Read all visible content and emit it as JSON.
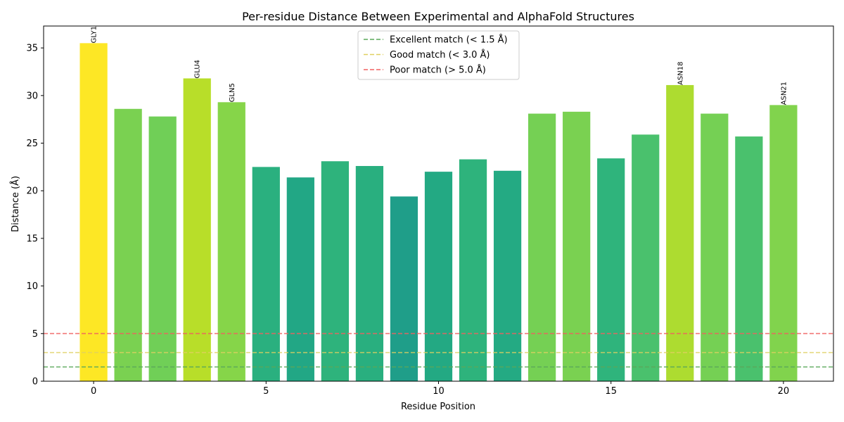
{
  "chart_data": {
    "type": "bar",
    "title": "Per-residue Distance Between Experimental and AlphaFold Structures",
    "xlabel": "Residue Position",
    "ylabel": "Distance (Å)",
    "x": [
      0,
      1,
      2,
      3,
      4,
      5,
      6,
      7,
      8,
      9,
      10,
      11,
      12,
      13,
      14,
      15,
      16,
      17,
      18,
      19,
      20
    ],
    "values": [
      35.5,
      28.6,
      27.8,
      31.8,
      29.3,
      22.5,
      21.4,
      23.1,
      22.6,
      19.4,
      22.0,
      23.3,
      22.1,
      28.1,
      28.3,
      23.4,
      25.9,
      31.1,
      28.1,
      25.7,
      29.0
    ],
    "bar_colors": [
      "#fde725",
      "#7ad151",
      "#70cf57",
      "#b8de29",
      "#86d549",
      "#2ab07f",
      "#22a785",
      "#2eb37c",
      "#29af7f",
      "#1f9e89",
      "#23a983",
      "#2eb37c",
      "#24aa83",
      "#75d054",
      "#7ad151",
      "#2fb47c",
      "#4ac16d",
      "#addc30",
      "#75d054",
      "#4ac16d",
      "#81d34d"
    ],
    "bar_labels": [
      {
        "index": 0,
        "text": "GLY1"
      },
      {
        "index": 3,
        "text": "GLU4"
      },
      {
        "index": 4,
        "text": "GLN5"
      },
      {
        "index": 17,
        "text": "ASN18"
      },
      {
        "index": 20,
        "text": "ASN21"
      }
    ],
    "xticks": [
      0,
      5,
      10,
      15,
      20
    ],
    "yticks": [
      0,
      5,
      10,
      15,
      20,
      25,
      30,
      35
    ],
    "xlim": [
      -1.45,
      21.45
    ],
    "ylim": [
      0,
      37.3
    ],
    "hlines": [
      {
        "y": 1.5,
        "name": "Excellent match (< 1.5 Å)",
        "color": "#5aa85a"
      },
      {
        "y": 3.0,
        "name": "Good match (< 3.0 Å)",
        "color": "#e0d060"
      },
      {
        "y": 5.0,
        "name": "Poor match (> 5.0 Å)",
        "color": "#f06060"
      }
    ],
    "legend_position": "top-center",
    "grid": false
  }
}
